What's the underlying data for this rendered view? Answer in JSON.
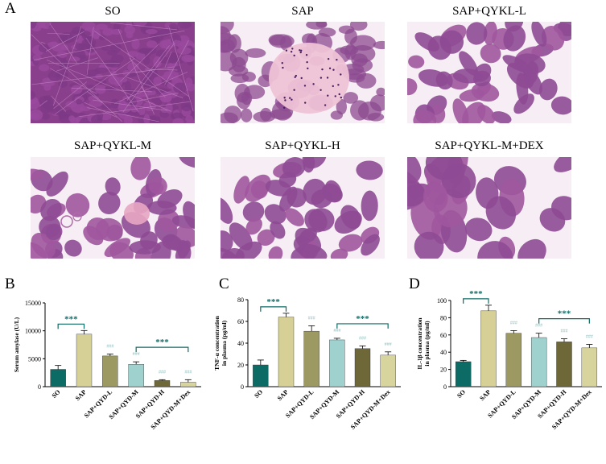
{
  "panel_letters": {
    "a": "A",
    "b": "B",
    "c": "C",
    "d": "D"
  },
  "images": [
    {
      "title": "SO",
      "style": "dense"
    },
    {
      "title": "SAP",
      "style": "necrosis"
    },
    {
      "title": "SAP+QYKL-L",
      "style": "lobules"
    },
    {
      "title": "SAP+QYKL-M",
      "style": "lobules-damaged"
    },
    {
      "title": "SAP+QYKL-H",
      "style": "lobules"
    },
    {
      "title": "SAP+QYKL-M+DEX",
      "style": "lobules-large"
    }
  ],
  "colors": {
    "SO": "#0d6b66",
    "SAP": "#d6cf96",
    "SAP+QYD-L": "#9c9a62",
    "SAP+QYD-M": "#9fd1cf",
    "SAP+QYD-H": "#6e6838",
    "SAP+QYD-M+Dex": "#d8d49e",
    "significance": "#0d6b66",
    "hash": "#8fbdbd"
  },
  "chart_data": [
    {
      "type": "bar",
      "ylabel": "Serum amylase (U/L)",
      "ylim": [
        0,
        15000
      ],
      "yticks": [
        0,
        5000,
        10000,
        15000
      ],
      "categories": [
        "SO",
        "SAP",
        "SAP+QYD-L",
        "SAP+QYD-M",
        "SAP+QYD-H",
        "SAP+QYD-M+Dex"
      ],
      "values": [
        3100,
        9400,
        5500,
        4000,
        1100,
        800
      ],
      "errors": [
        700,
        650,
        350,
        450,
        150,
        450
      ],
      "annotations": [
        "",
        "",
        "###",
        "###",
        "###",
        "###"
      ],
      "brackets": [
        {
          "from": 0,
          "to": 1,
          "label": "***"
        },
        {
          "from": 3,
          "to": 5,
          "label": "***"
        }
      ]
    },
    {
      "type": "bar",
      "ylabel": "TNF-α concentration in plasma (pg/ml)",
      "ylim": [
        0,
        80
      ],
      "yticks": [
        0,
        20,
        40,
        60,
        80
      ],
      "categories": [
        "SO",
        "SAP",
        "SAP+QYD-L",
        "SAP+QYD-M",
        "SAP+QYD-H",
        "SAP+QYD-M+Dex"
      ],
      "values": [
        20,
        64,
        51,
        43,
        35,
        29
      ],
      "errors": [
        4.5,
        3.5,
        5,
        1.5,
        2.5,
        3
      ],
      "annotations": [
        "",
        "",
        "###",
        "###",
        "###",
        "###"
      ],
      "brackets": [
        {
          "from": 0,
          "to": 1,
          "label": "***"
        },
        {
          "from": 3,
          "to": 5,
          "label": "***"
        }
      ]
    },
    {
      "type": "bar",
      "ylabel": "IL-1β concentration in plasma (pg/ml)",
      "ylim": [
        0,
        100
      ],
      "yticks": [
        0,
        20,
        40,
        60,
        80,
        100
      ],
      "categories": [
        "SO",
        "SAP",
        "SAP+QYD-L",
        "SAP+QYD-M",
        "SAP+QYD-H",
        "SAP+QYD-M+Dex"
      ],
      "values": [
        29,
        88,
        62,
        57,
        52,
        45
      ],
      "errors": [
        1.5,
        6.5,
        3,
        5,
        3.5,
        4
      ],
      "annotations": [
        "",
        "",
        "###",
        "###",
        "###",
        "###"
      ],
      "brackets": [
        {
          "from": 0,
          "to": 1,
          "label": "***"
        },
        {
          "from": 3,
          "to": 5,
          "label": "***"
        }
      ]
    }
  ]
}
